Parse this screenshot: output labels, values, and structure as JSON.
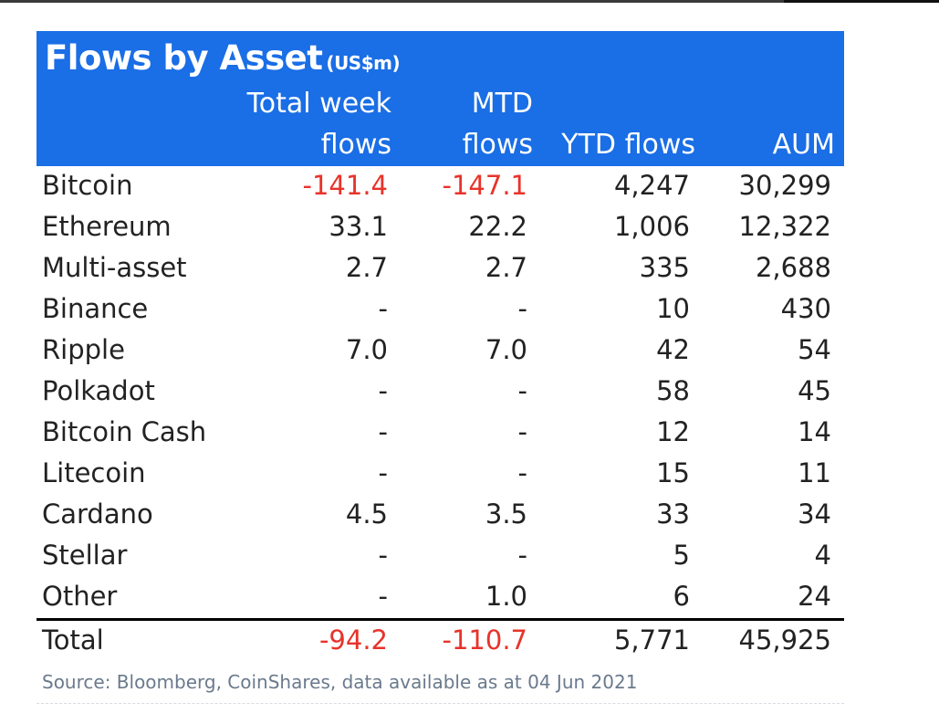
{
  "chart_data": {
    "type": "table",
    "title": "Flows by Asset",
    "unit": "(US$m)",
    "columns": [
      {
        "line1": "",
        "line2": ""
      },
      {
        "line1": "Total week",
        "line2": "flows"
      },
      {
        "line1": "MTD",
        "line2": "flows"
      },
      {
        "line1": "",
        "line2": "YTD flows"
      },
      {
        "line1": "",
        "line2": "AUM"
      }
    ],
    "rows": [
      {
        "asset": "Bitcoin",
        "week": "-141.4",
        "mtd": "-147.1",
        "ytd": "4,247",
        "aum": "30,299"
      },
      {
        "asset": "Ethereum",
        "week": "33.1",
        "mtd": "22.2",
        "ytd": "1,006",
        "aum": "12,322"
      },
      {
        "asset": "Multi-asset",
        "week": "2.7",
        "mtd": "2.7",
        "ytd": "335",
        "aum": "2,688"
      },
      {
        "asset": "Binance",
        "week": "-",
        "mtd": "-",
        "ytd": "10",
        "aum": "430"
      },
      {
        "asset": "Ripple",
        "week": "7.0",
        "mtd": "7.0",
        "ytd": "42",
        "aum": "54"
      },
      {
        "asset": "Polkadot",
        "week": "-",
        "mtd": "-",
        "ytd": "58",
        "aum": "45"
      },
      {
        "asset": "Bitcoin Cash",
        "week": "-",
        "mtd": "-",
        "ytd": "12",
        "aum": "14"
      },
      {
        "asset": "Litecoin",
        "week": "-",
        "mtd": "-",
        "ytd": "15",
        "aum": "11"
      },
      {
        "asset": "Cardano",
        "week": "4.5",
        "mtd": "3.5",
        "ytd": "33",
        "aum": "34"
      },
      {
        "asset": "Stellar",
        "week": "-",
        "mtd": "-",
        "ytd": "5",
        "aum": "4"
      },
      {
        "asset": "Other",
        "week": "-",
        "mtd": "1.0",
        "ytd": "6",
        "aum": "24"
      }
    ],
    "total": {
      "asset": "Total",
      "week": "-94.2",
      "mtd": "-110.7",
      "ytd": "5,771",
      "aum": "45,925"
    },
    "source": "Source: Bloomberg, CoinShares, data available as at 04 Jun 2021",
    "colors": {
      "header_bg": "#1a6ee6",
      "header_text": "#ffffff",
      "negative": "#e8332a",
      "text": "#222222"
    }
  }
}
